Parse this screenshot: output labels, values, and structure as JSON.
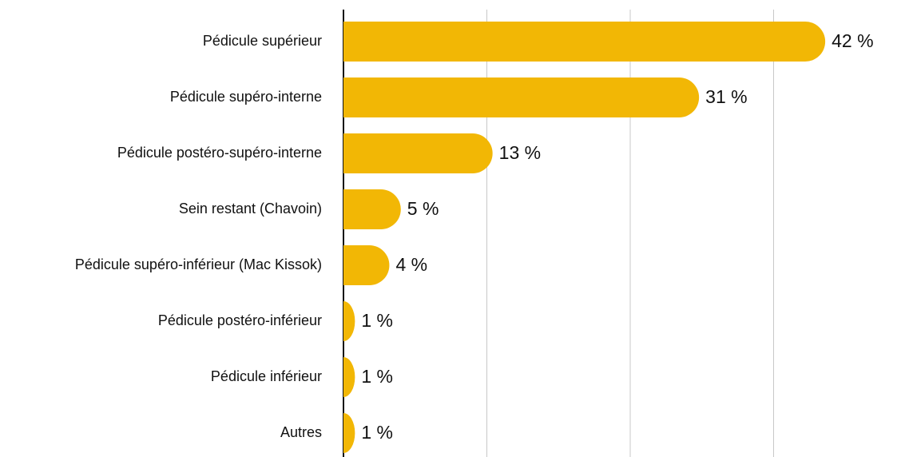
{
  "chart_data": {
    "type": "bar",
    "orientation": "horizontal",
    "categories": [
      "Pédicule supérieur",
      "Pédicule supéro-interne",
      "Pédicule postéro-supéro-interne",
      "Sein restant (Chavoin)",
      "Pédicule supéro-inférieur (Mac Kissok)",
      "Pédicule postéro-inférieur",
      "Pédicule inférieur",
      "Autres"
    ],
    "values": [
      42,
      31,
      13,
      5,
      4,
      1,
      1,
      1
    ],
    "value_labels": [
      "42 %",
      "31 %",
      "13 %",
      "5 %",
      "4 %",
      "1 %",
      "1 %",
      "1 %"
    ],
    "color": "#f2b705",
    "xlim": [
      0,
      48
    ],
    "xticks": [
      0,
      12.5,
      25,
      37.5
    ],
    "grid": true
  }
}
